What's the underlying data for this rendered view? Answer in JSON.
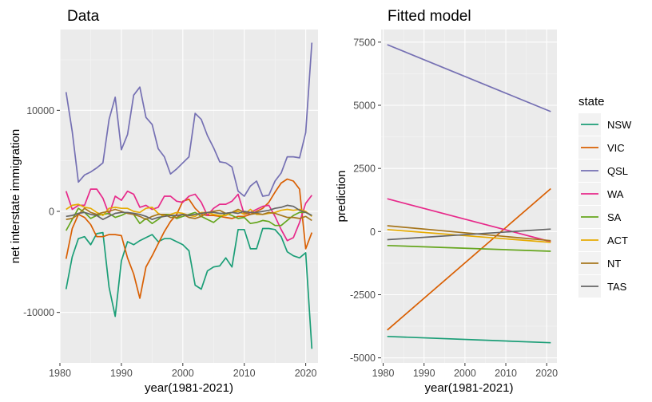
{
  "chart_data": [
    {
      "type": "line",
      "title": "Data",
      "xlabel": "year(1981-2021)",
      "ylabel": "net interstate immigration",
      "xlim": [
        1980,
        2022
      ],
      "ylim": [
        -15000,
        18000
      ],
      "xticks": [
        1980,
        1990,
        2000,
        2010,
        2020
      ],
      "yticks": [
        -10000,
        0,
        10000
      ],
      "ytick_labels": [
        "-10000",
        "0",
        "10000"
      ],
      "grid": true,
      "x": [
        1981,
        1982,
        1983,
        1984,
        1985,
        1986,
        1987,
        1988,
        1989,
        1990,
        1991,
        1992,
        1993,
        1994,
        1995,
        1996,
        1997,
        1998,
        1999,
        2000,
        2001,
        2002,
        2003,
        2004,
        2005,
        2006,
        2007,
        2008,
        2009,
        2010,
        2011,
        2012,
        2013,
        2014,
        2015,
        2016,
        2017,
        2018,
        2019,
        2020,
        2021
      ],
      "series": [
        {
          "name": "NSW",
          "color": "#1b9e77",
          "values": [
            -7700,
            -4500,
            -2700,
            -2500,
            -3300,
            -2200,
            -2100,
            -7500,
            -10400,
            -4900,
            -3000,
            -3300,
            -2900,
            -2600,
            -2300,
            -3000,
            -2700,
            -2700,
            -3000,
            -3300,
            -3900,
            -7300,
            -7700,
            -5900,
            -5500,
            -5400,
            -4600,
            -5500,
            -1800,
            -1800,
            -3700,
            -3700,
            -1700,
            -1700,
            -1800,
            -2500,
            -4000,
            -4400,
            -4600,
            -4100,
            -13600
          ]
        },
        {
          "name": "VIC",
          "color": "#d95f02",
          "values": [
            -4700,
            -1700,
            -300,
            -600,
            -1300,
            -2500,
            -2500,
            -2300,
            -2300,
            -2400,
            -4600,
            -6200,
            -8600,
            -5500,
            -4400,
            -3200,
            -2000,
            -1000,
            -300,
            1000,
            1200,
            300,
            -300,
            -400,
            -400,
            -500,
            -600,
            -700,
            -500,
            -500,
            -300,
            0,
            300,
            900,
            1900,
            2800,
            3200,
            3000,
            2200,
            -3700,
            -2100
          ]
        },
        {
          "name": "QSL",
          "color": "#7570b3",
          "values": [
            11800,
            7900,
            2900,
            3600,
            3900,
            4300,
            4800,
            9100,
            11300,
            6100,
            7600,
            11500,
            12300,
            9300,
            8600,
            6200,
            5400,
            3700,
            4200,
            4800,
            5400,
            9700,
            9100,
            7500,
            6300,
            4900,
            4800,
            4400,
            2000,
            1500,
            2500,
            3000,
            1500,
            1600,
            3000,
            3800,
            5400,
            5400,
            5300,
            7800,
            16700
          ]
        },
        {
          "name": "WA",
          "color": "#e7298a",
          "values": [
            2000,
            200,
            600,
            600,
            2200,
            2200,
            1300,
            -300,
            1500,
            1100,
            2000,
            1700,
            400,
            600,
            200,
            400,
            1500,
            1500,
            1000,
            900,
            1500,
            1700,
            900,
            -400,
            300,
            700,
            700,
            1000,
            1700,
            -300,
            -100,
            200,
            500,
            600,
            -500,
            -1800,
            -2900,
            -2600,
            -1100,
            800,
            1600
          ]
        },
        {
          "name": "SA",
          "color": "#66a61e",
          "values": [
            -1900,
            -800,
            300,
            -100,
            -700,
            -400,
            -300,
            -200,
            -600,
            -400,
            -100,
            -300,
            -1200,
            -700,
            -1200,
            -800,
            -300,
            -300,
            -700,
            -500,
            -300,
            -100,
            -500,
            -800,
            -1100,
            -600,
            -200,
            -400,
            -700,
            -600,
            -1200,
            -1100,
            -900,
            -1000,
            -1400,
            -1400,
            -900,
            -400,
            -100,
            -100,
            -400
          ]
        },
        {
          "name": "ACT",
          "color": "#e6ab02",
          "values": [
            200,
            600,
            700,
            400,
            300,
            -100,
            -400,
            300,
            400,
            300,
            300,
            0,
            -100,
            300,
            400,
            -200,
            -500,
            -300,
            -100,
            -200,
            -400,
            -500,
            -100,
            -100,
            -300,
            -400,
            -400,
            -100,
            0,
            -300,
            200,
            -300,
            -300,
            -200,
            -100,
            100,
            200,
            100,
            200,
            0,
            -500
          ]
        },
        {
          "name": "NT",
          "color": "#a6761d",
          "values": [
            -800,
            -700,
            -300,
            300,
            -100,
            -300,
            -100,
            0,
            200,
            0,
            -200,
            -300,
            -500,
            -800,
            -500,
            -300,
            -300,
            -600,
            -600,
            -300,
            -600,
            -700,
            -500,
            -100,
            0,
            100,
            -200,
            -100,
            200,
            -100,
            -300,
            -200,
            -300,
            -100,
            -200,
            -400,
            -600,
            -600,
            -700,
            -500,
            -900
          ]
        },
        {
          "name": "TAS",
          "color": "#666666",
          "values": [
            -500,
            -400,
            -200,
            -100,
            -300,
            -400,
            -800,
            -500,
            -200,
            -100,
            -100,
            -200,
            -300,
            -500,
            -800,
            -600,
            -500,
            -400,
            -400,
            -300,
            -400,
            -300,
            -200,
            -100,
            -100,
            -200,
            -200,
            -100,
            -200,
            0,
            -100,
            -100,
            0,
            100,
            300,
            400,
            600,
            500,
            100,
            -100,
            -400
          ]
        }
      ]
    },
    {
      "type": "line",
      "title": "Fitted model",
      "xlabel": "year(1981-2021)",
      "ylabel": "prediction",
      "xlim": [
        1979.5,
        2022.5
      ],
      "ylim": [
        -5200,
        8000
      ],
      "xticks": [
        1980,
        1990,
        2000,
        2010,
        2020
      ],
      "yticks": [
        -5000,
        -2500,
        0,
        2500,
        5000,
        7500
      ],
      "ytick_labels": [
        "-5000",
        "-2500",
        "0",
        "2500",
        "5000",
        "7500"
      ],
      "grid": true,
      "legend_position": "right",
      "legend_title": "state",
      "x": [
        1981,
        2021
      ],
      "series": [
        {
          "name": "NSW",
          "color": "#1b9e77",
          "values": [
            -4150,
            -4400
          ]
        },
        {
          "name": "VIC",
          "color": "#d95f02",
          "values": [
            -3900,
            1700
          ]
        },
        {
          "name": "QSL",
          "color": "#7570b3",
          "values": [
            7400,
            4750
          ]
        },
        {
          "name": "WA",
          "color": "#e7298a",
          "values": [
            1300,
            -400
          ]
        },
        {
          "name": "SA",
          "color": "#66a61e",
          "values": [
            -550,
            -780
          ]
        },
        {
          "name": "ACT",
          "color": "#e6ab02",
          "values": [
            80,
            -430
          ]
        },
        {
          "name": "NT",
          "color": "#a6761d",
          "values": [
            230,
            -360
          ]
        },
        {
          "name": "TAS",
          "color": "#666666",
          "values": [
            -320,
            100
          ]
        }
      ]
    }
  ]
}
